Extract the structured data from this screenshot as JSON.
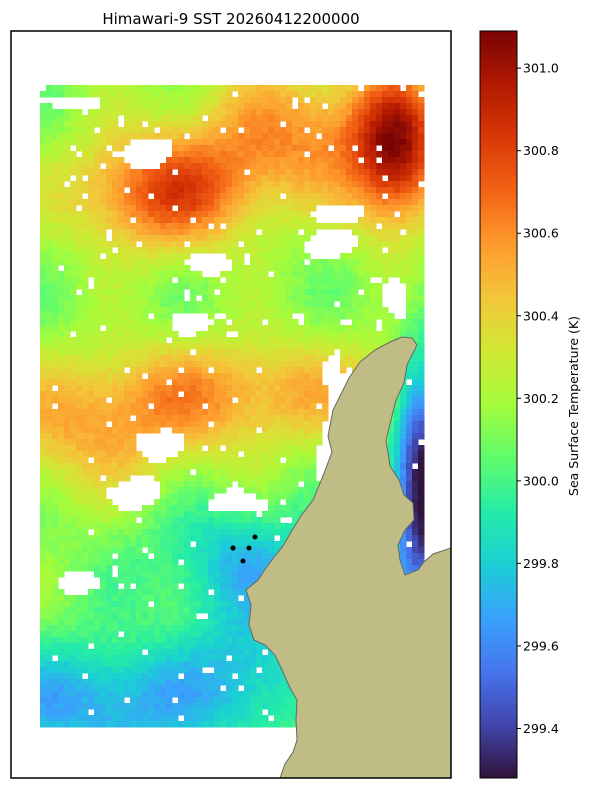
{
  "chart_data": {
    "type": "heatmap",
    "title": "Himawari-9 SST 20260412200000",
    "colorbar": {
      "label": "Sea Surface Temperature (K)",
      "range": [
        299.28,
        301.09
      ],
      "ticks": [
        299.4,
        299.6,
        299.8,
        300.0,
        300.2,
        300.4,
        300.6,
        300.8,
        301.0
      ],
      "tick_labels": [
        "299.4",
        "299.6",
        "299.8",
        "300.0",
        "300.2",
        "300.4",
        "300.6",
        "300.8",
        "301.0"
      ],
      "colormap": "turbo"
    },
    "grid": false,
    "land_color": "#bfbd85",
    "land_edge_color": "#666666",
    "markers": {
      "count": 5,
      "color": "#000000"
    }
  }
}
